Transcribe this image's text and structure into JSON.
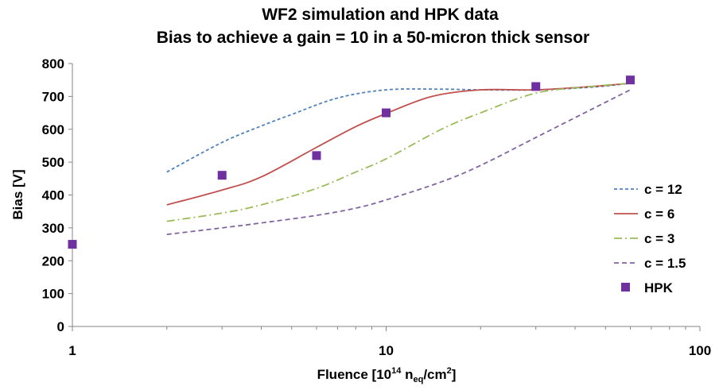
{
  "chart_data": {
    "type": "scatter",
    "title_line1": "WF2 simulation and HPK data",
    "title_line2": "Bias to achieve a gain = 10 in a 50-micron thick sensor",
    "ylabel": "Bias [V]",
    "xlabel": {
      "prefix": "Fluence [10",
      "exp14": "14",
      "n": " n",
      "sub_eq": "eq",
      "unit": "/cm",
      "exp2": "2",
      "suffix": "]"
    },
    "x_scale": "log",
    "xlim": [
      1,
      100
    ],
    "ylim": [
      0,
      800
    ],
    "x_ticks": [
      1,
      10,
      100
    ],
    "x_tick_labels": [
      "1",
      "10",
      "100"
    ],
    "y_ticks": [
      0,
      100,
      200,
      300,
      400,
      500,
      600,
      700,
      800
    ],
    "y_tick_labels": [
      "0",
      "100",
      "200",
      "300",
      "400",
      "500",
      "600",
      "700",
      "800"
    ],
    "legend_position": "right",
    "series": [
      {
        "name": "c = 12",
        "style": "dashed-short",
        "color": "#4f81bd",
        "x": [
          2,
          3,
          4,
          5,
          7,
          10,
          15,
          20,
          30,
          45,
          60
        ],
        "y": [
          470,
          560,
          610,
          645,
          695,
          720,
          722,
          720,
          720,
          728,
          740
        ]
      },
      {
        "name": "c = 6",
        "style": "solid",
        "color": "#c0504d",
        "x": [
          2,
          3,
          4,
          6,
          8,
          10,
          14,
          20,
          30,
          45,
          60
        ],
        "y": [
          370,
          415,
          455,
          545,
          608,
          648,
          700,
          720,
          720,
          730,
          740
        ]
      },
      {
        "name": "c = 3",
        "style": "dash-dot",
        "color": "#9bbb59",
        "x": [
          2,
          3,
          4,
          6,
          8,
          10,
          15,
          20,
          30,
          45,
          60
        ],
        "y": [
          320,
          345,
          370,
          420,
          470,
          510,
          600,
          650,
          710,
          730,
          740
        ]
      },
      {
        "name": "c = 1.5",
        "style": "dashed",
        "color": "#8064a2",
        "x": [
          2,
          3,
          4,
          6,
          8,
          10,
          15,
          20,
          30,
          45,
          60
        ],
        "y": [
          280,
          300,
          315,
          338,
          360,
          385,
          440,
          490,
          575,
          660,
          720
        ]
      },
      {
        "name": "HPK",
        "style": "marker-square",
        "color": "#7030a0",
        "x": [
          1,
          3,
          6,
          10,
          30,
          60
        ],
        "y": [
          250,
          460,
          520,
          650,
          730,
          750
        ]
      }
    ]
  }
}
